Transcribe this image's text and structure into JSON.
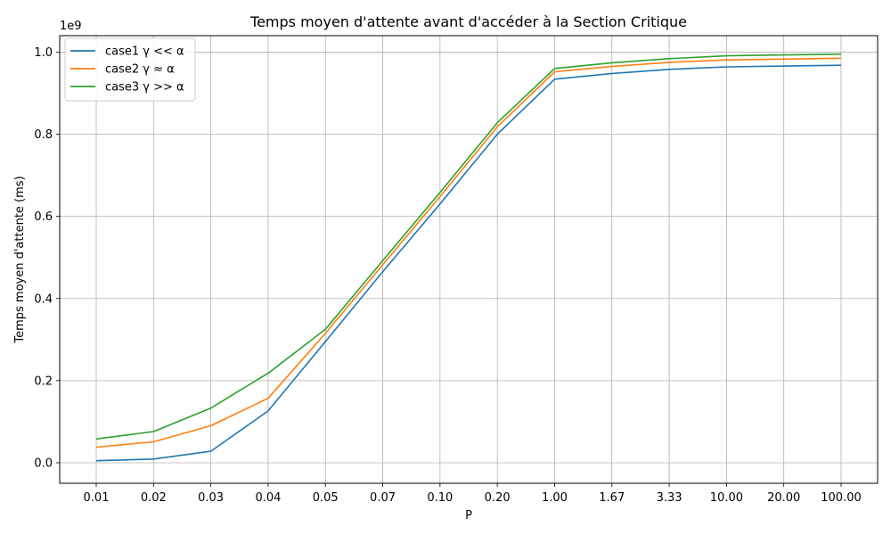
{
  "chart_data": {
    "type": "line",
    "title": "Temps moyen d'attente avant d'accéder à la Section Critique",
    "xlabel": "P",
    "ylabel": "Temps moyen d'attente (ms)",
    "y_offset_label": "1e9",
    "categories": [
      "0.01",
      "0.02",
      "0.03",
      "0.04",
      "0.05",
      "0.07",
      "0.10",
      "0.20",
      "1.00",
      "1.67",
      "3.33",
      "10.00",
      "20.00",
      "100.00"
    ],
    "yticks": [
      "0.0",
      "0.2",
      "0.4",
      "0.6",
      "0.8",
      "1.0"
    ],
    "ylim": [
      -0.05,
      1.04
    ],
    "grid": true,
    "legend_position": "upper-left",
    "series": [
      {
        "name": "case1 γ << α",
        "color": "#1f77b4",
        "values": [
          0.005,
          0.009,
          0.028,
          0.126,
          0.295,
          0.465,
          0.63,
          0.8,
          0.934,
          0.948,
          0.958,
          0.964,
          0.966,
          0.968
        ]
      },
      {
        "name": "case2 γ ≈ α",
        "color": "#ff7f0e",
        "values": [
          0.038,
          0.051,
          0.09,
          0.157,
          0.315,
          0.482,
          0.648,
          0.818,
          0.952,
          0.965,
          0.975,
          0.981,
          0.983,
          0.985
        ]
      },
      {
        "name": "case3 γ >> α",
        "color": "#2ca02c",
        "values": [
          0.058,
          0.076,
          0.133,
          0.218,
          0.325,
          0.492,
          0.658,
          0.828,
          0.96,
          0.974,
          0.984,
          0.991,
          0.993,
          0.995
        ]
      }
    ]
  }
}
